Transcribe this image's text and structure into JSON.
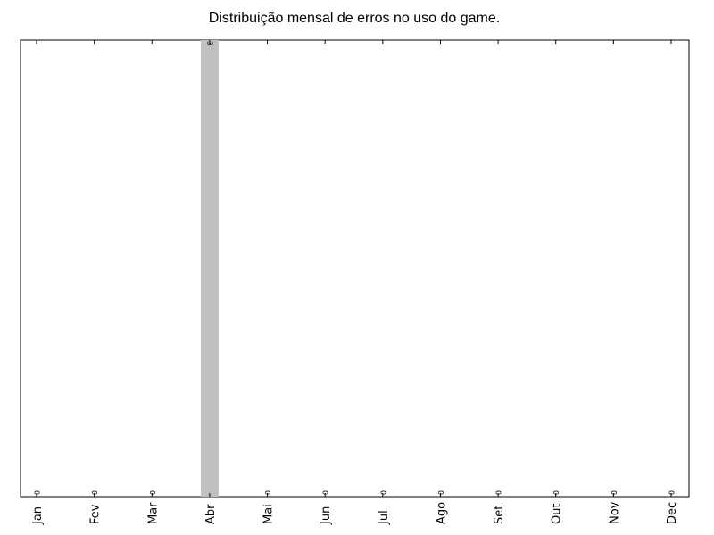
{
  "chart_data": {
    "type": "bar",
    "title": "Distribuição mensal de erros no uso do game.",
    "xlabel": "",
    "ylabel": "",
    "categories": [
      "Jan",
      "Fev",
      "Mar",
      "Abr",
      "Mai",
      "Jun",
      "Jul",
      "Ago",
      "Set",
      "Out",
      "Nov",
      "Dec"
    ],
    "values": [
      0,
      0,
      0,
      3,
      0,
      0,
      0,
      0,
      0,
      0,
      0,
      0
    ],
    "ylim": [
      0,
      3
    ],
    "grid": false,
    "bar_color": "#c0c0c0",
    "data_labels": true
  }
}
